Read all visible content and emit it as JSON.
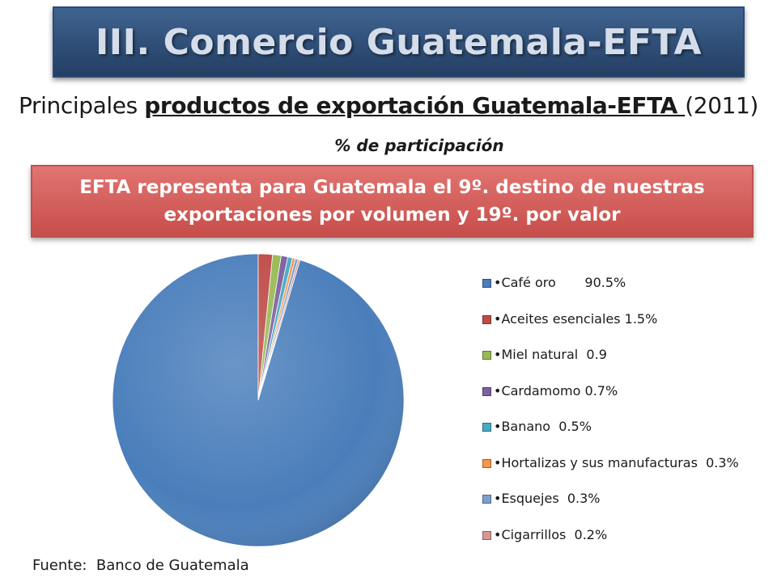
{
  "header": {
    "title": "III.  Comercio Guatemala-EFTA"
  },
  "subtitle": {
    "prefix": "Principales ",
    "emphasis": "productos de exportación Guatemala-EFTA ",
    "suffix": "(2011)"
  },
  "unit_note": "% de participación",
  "callout": {
    "line1": "EFTA representa para Guatemala el 9º.  destino de nuestras",
    "line2": "exportaciones por volumen y  19º. por valor"
  },
  "source": "Fuente:  Banco de Guatemala",
  "chart_data": {
    "type": "pie",
    "title": "",
    "legend_position": "right",
    "categories": [
      "•Café oro       90.5%",
      "•Aceites esenciales 1.5%",
      "•Miel natural  0.9",
      "•Cardamomo 0.7%",
      "•Banano  0.5%",
      "•Hortalizas y sus manufacturas  0.3%",
      "•Esquejes  0.3%",
      "•Cigarrillos  0.2%"
    ],
    "values": [
      90.5,
      1.5,
      0.9,
      0.7,
      0.5,
      0.3,
      0.3,
      0.2
    ],
    "colors": [
      "#4a7ebb",
      "#be4b48",
      "#98b954",
      "#7d60a0",
      "#46aac5",
      "#f79646",
      "#7f9fcb",
      "#d99694"
    ]
  }
}
